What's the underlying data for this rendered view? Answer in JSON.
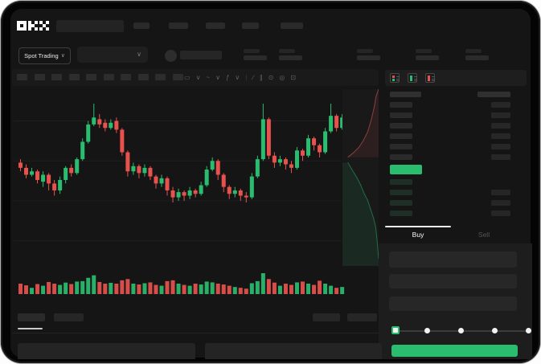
{
  "nav": {
    "logo": "OKX"
  },
  "market_header": {
    "pair_selector_label": "Spot Trading",
    "chevron": "∨",
    "stat_slots": 5
  },
  "chart_toolbar": {
    "interval_slots": 10,
    "icons": [
      {
        "name": "candle-type-icon",
        "glyph": "▭"
      },
      {
        "name": "chevron-down-icon",
        "glyph": "∨"
      },
      {
        "name": "line-type-icon",
        "glyph": "~"
      },
      {
        "name": "chevron-down-icon",
        "glyph": "∨"
      },
      {
        "name": "indicators-icon",
        "glyph": "ƒ"
      },
      {
        "name": "chevron-down-icon",
        "glyph": "∨"
      },
      {
        "name": "divider",
        "glyph": "|"
      },
      {
        "name": "trendline-icon",
        "glyph": "∕"
      },
      {
        "name": "measure-icon",
        "glyph": "∥"
      },
      {
        "name": "camera-icon",
        "glyph": "⊙"
      },
      {
        "name": "settings-icon",
        "glyph": "◎"
      },
      {
        "name": "fullscreen-icon",
        "glyph": "⊡"
      }
    ]
  },
  "chart_data": {
    "type": "candlestick",
    "note": "candles are [open,close,high,low] on a 0-100 relative price scale; volume is 0-1 relative",
    "up_color": "#2BBD6F",
    "down_color": "#E8524E",
    "gridline_prices": [
      84,
      61,
      38,
      15
    ],
    "candles": [
      [
        60,
        57,
        62,
        55
      ],
      [
        57,
        53,
        59,
        51
      ],
      [
        53,
        55,
        57,
        52
      ],
      [
        55,
        50,
        56,
        48
      ],
      [
        49,
        53,
        55,
        46
      ],
      [
        53,
        48,
        54,
        44
      ],
      [
        48,
        44,
        50,
        41
      ],
      [
        44,
        50,
        52,
        42
      ],
      [
        50,
        57,
        58,
        48
      ],
      [
        57,
        54,
        59,
        52
      ],
      [
        54,
        62,
        63,
        53
      ],
      [
        62,
        72,
        74,
        61
      ],
      [
        72,
        82,
        84,
        71
      ],
      [
        82,
        86,
        94,
        81
      ],
      [
        85,
        82,
        88,
        80
      ],
      [
        83,
        80,
        85,
        78
      ],
      [
        80,
        83,
        85,
        79
      ],
      [
        84,
        79,
        86,
        77
      ],
      [
        79,
        66,
        80,
        64
      ],
      [
        66,
        55,
        67,
        52
      ],
      [
        55,
        58,
        60,
        53
      ],
      [
        58,
        54,
        59,
        51
      ],
      [
        54,
        57,
        59,
        52
      ],
      [
        57,
        52,
        58,
        50
      ],
      [
        52,
        48,
        53,
        45
      ],
      [
        48,
        51,
        53,
        46
      ],
      [
        51,
        44,
        52,
        41
      ],
      [
        44,
        40,
        46,
        37
      ],
      [
        40,
        43,
        45,
        38
      ],
      [
        43,
        41,
        44,
        38
      ],
      [
        41,
        44,
        46,
        39
      ],
      [
        44,
        42,
        45,
        40
      ],
      [
        42,
        47,
        49,
        41
      ],
      [
        47,
        56,
        58,
        46
      ],
      [
        56,
        61,
        63,
        55
      ],
      [
        61,
        53,
        62,
        50
      ],
      [
        53,
        46,
        54,
        43
      ],
      [
        46,
        42,
        47,
        39
      ],
      [
        42,
        44,
        46,
        40
      ],
      [
        44,
        41,
        45,
        38
      ],
      [
        41,
        40,
        43,
        37
      ],
      [
        40,
        52,
        54,
        39
      ],
      [
        52,
        62,
        64,
        51
      ],
      [
        62,
        85,
        94,
        61
      ],
      [
        85,
        64,
        86,
        62
      ],
      [
        64,
        60,
        66,
        57
      ],
      [
        60,
        62,
        64,
        58
      ],
      [
        62,
        59,
        63,
        56
      ],
      [
        59,
        57,
        61,
        54
      ],
      [
        57,
        67,
        69,
        56
      ],
      [
        67,
        64,
        68,
        61
      ],
      [
        64,
        74,
        76,
        63
      ],
      [
        74,
        70,
        75,
        67
      ],
      [
        70,
        66,
        71,
        63
      ],
      [
        66,
        78,
        80,
        65
      ],
      [
        78,
        87,
        94,
        77
      ],
      [
        87,
        80,
        88,
        78
      ],
      [
        80,
        86,
        88,
        79
      ]
    ],
    "volume": [
      0.5,
      0.42,
      0.3,
      0.48,
      0.4,
      0.58,
      0.5,
      0.44,
      0.55,
      0.48,
      0.6,
      0.62,
      0.78,
      0.9,
      0.58,
      0.5,
      0.54,
      0.5,
      0.66,
      0.72,
      0.5,
      0.46,
      0.52,
      0.56,
      0.44,
      0.4,
      0.62,
      0.66,
      0.5,
      0.44,
      0.4,
      0.5,
      0.46,
      0.6,
      0.56,
      0.5,
      0.46,
      0.4,
      0.34,
      0.3,
      0.26,
      0.52,
      0.62,
      1.0,
      0.72,
      0.55,
      0.4,
      0.5,
      0.44,
      0.56,
      0.6,
      0.5,
      0.44,
      0.64,
      0.5,
      0.4,
      0.3,
      0.34
    ],
    "depth_preview": {
      "asks_line": [
        [
          1,
          0
        ],
        [
          0.93,
          0.04
        ],
        [
          0.88,
          0.1
        ],
        [
          0.8,
          0.17
        ],
        [
          0.7,
          0.24
        ],
        [
          0.58,
          0.29
        ],
        [
          0.45,
          0.33
        ],
        [
          0.3,
          0.36
        ],
        [
          0.15,
          0.385
        ]
      ],
      "bids_line": [
        [
          0.15,
          0.415
        ],
        [
          0.28,
          0.46
        ],
        [
          0.4,
          0.5
        ],
        [
          0.5,
          0.54
        ],
        [
          0.6,
          0.59
        ],
        [
          0.7,
          0.63
        ],
        [
          0.78,
          0.68
        ],
        [
          0.86,
          0.73
        ],
        [
          0.92,
          0.78
        ],
        [
          0.96,
          0.86
        ],
        [
          1,
          0.96
        ]
      ],
      "ask_fill": "rgba(222,84,84,0.10)",
      "bid_fill": "rgba(43,189,111,0.10)"
    }
  },
  "orderbook": {
    "mode_icons": [
      "split-book",
      "bids-only",
      "asks-only"
    ],
    "header": {
      "left_w": 39,
      "right_w": 41
    },
    "asks": {
      "left_w": [
        28,
        28,
        28,
        28,
        28,
        28
      ],
      "right_w": [
        24,
        24,
        24,
        24,
        24,
        24
      ],
      "left_color": "#2a2a2a",
      "right_color": "#272727"
    },
    "last_price_row": {
      "width": 40,
      "color": "#2BBD6F"
    },
    "bids": {
      "left_w": [
        28,
        28,
        28,
        28
      ],
      "right_w": [
        0,
        24,
        24,
        24
      ],
      "left_color": "#1f2e26",
      "right_color": "#262626"
    }
  },
  "trade_panel": {
    "tabs": [
      {
        "label": "Buy",
        "active": true
      },
      {
        "label": "Sell",
        "active": false
      }
    ],
    "field_slots": 3,
    "slider": {
      "steps": 5,
      "active_index": 0
    },
    "submit_color": "#2BBD6F"
  }
}
